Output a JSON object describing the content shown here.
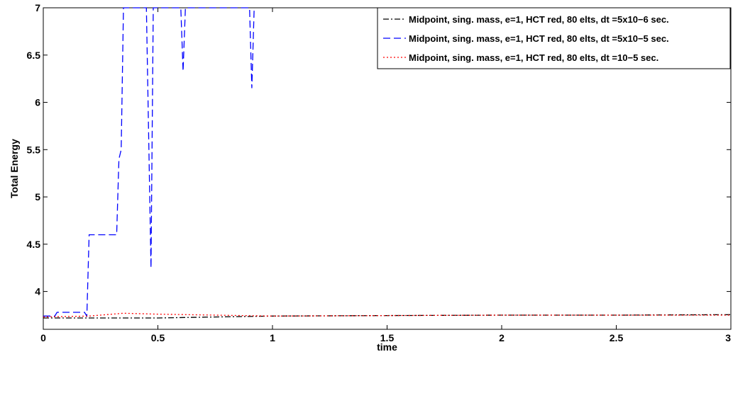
{
  "chart_data": {
    "type": "line",
    "title": "",
    "xlabel": "time",
    "ylabel": "Total Energy",
    "xlim": [
      0,
      3
    ],
    "ylim": [
      3.6,
      7
    ],
    "x_ticks": [
      "0",
      "0.5",
      "1",
      "1.5",
      "2",
      "2.5",
      "3"
    ],
    "y_ticks": [
      "4",
      "4.5",
      "5",
      "5.5",
      "6",
      "6.5",
      "7"
    ],
    "legend_position": "top-right",
    "grid": false,
    "series": [
      {
        "name": "Midpoint, sing. mass, e=1, HCT red, 80 elts, dt =5x10−6 sec.",
        "color": "#000000",
        "style": "dash-dot",
        "x": [
          0,
          0.1,
          0.2,
          0.3,
          0.5,
          0.75,
          1.0,
          1.5,
          2.0,
          2.5,
          3.0
        ],
        "y": [
          3.72,
          3.72,
          3.72,
          3.72,
          3.72,
          3.73,
          3.74,
          3.745,
          3.75,
          3.75,
          3.755
        ]
      },
      {
        "name": "Midpoint, sing. mass, e=1, HCT red, 80 elts, dt =5x10−5 sec.",
        "color": "#0000ff",
        "style": "dash",
        "x": [
          0.0,
          0.05,
          0.06,
          0.18,
          0.19,
          0.2,
          0.32,
          0.33,
          0.34,
          0.35,
          0.45,
          0.47,
          0.48,
          0.6,
          0.61,
          0.62,
          0.9,
          0.91,
          0.92
        ],
        "y": [
          3.74,
          3.74,
          3.78,
          3.78,
          3.74,
          4.6,
          4.6,
          5.4,
          5.5,
          7.0,
          7.0,
          4.25,
          7.0,
          7.0,
          6.33,
          7.0,
          7.0,
          6.15,
          7.0
        ]
      },
      {
        "name": "Midpoint, sing. mass, e=1, HCT red, 80 elts, dt =10−5 sec.",
        "color": "#ff0000",
        "style": "dot",
        "x": [
          0,
          0.2,
          0.35,
          0.5,
          0.75,
          1.0,
          1.5,
          2.0,
          2.5,
          3.0
        ],
        "y": [
          3.73,
          3.74,
          3.77,
          3.76,
          3.75,
          3.74,
          3.745,
          3.75,
          3.75,
          3.75
        ]
      }
    ]
  }
}
